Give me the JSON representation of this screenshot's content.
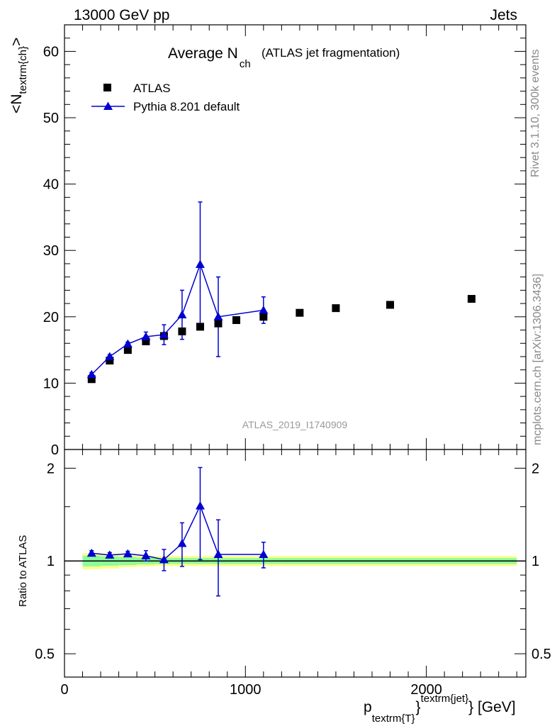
{
  "header": {
    "left": "13000 GeV pp",
    "right": "Jets"
  },
  "side_text": {
    "rivet": "Rivet 3.1.10,  300k events",
    "mcplots": "mcplots.cern.ch [arXiv:1306.3436]"
  },
  "title": {
    "main": "Average N",
    "main_sub": "ch",
    "note": "(ATLAS jet fragmentation)"
  },
  "watermark": "ATLAS_2019_I1740909",
  "axes": {
    "ylabel_main": "<N",
    "ylabel_main_sub": "textrm{ch}",
    "ylabel_main_end": ">",
    "ylabel_ratio": "Ratio to ATLAS",
    "xlabel_p": "p",
    "xlabel_sub": "textrm{T}",
    "xlabel_sup": "textrm{jet}",
    "xlabel_unit": "[GeV]"
  },
  "legend": {
    "position": "top-left",
    "items": [
      "ATLAS",
      "Pythia 8.201 default"
    ]
  },
  "colors": {
    "data": "#000000",
    "mc": "#0000d0",
    "band_inner": "#8dfd9b",
    "band_outer": "#fdfd8d"
  },
  "chart_data": [
    {
      "type": "scatter",
      "panel": "main",
      "xlim": [
        0,
        2550
      ],
      "ylim": [
        0,
        64
      ],
      "x_ticks": [
        0,
        1000,
        2000
      ],
      "y_ticks": [
        0,
        10,
        20,
        30,
        40,
        50,
        60
      ],
      "y_tick_labels": [
        "0",
        "10",
        "20",
        "30",
        "40",
        "50",
        "60"
      ],
      "series": [
        {
          "name": "ATLAS",
          "marker": "square",
          "x": [
            150,
            250,
            350,
            450,
            550,
            650,
            750,
            850,
            950,
            1100,
            1300,
            1500,
            1800,
            2250
          ],
          "y": [
            10.6,
            13.4,
            15.0,
            16.3,
            17.1,
            17.8,
            18.5,
            19.0,
            19.5,
            20.0,
            20.6,
            21.3,
            21.8,
            22.7
          ]
        },
        {
          "name": "Pythia 8.201 default",
          "marker": "triangle",
          "line": true,
          "x": [
            150,
            250,
            350,
            450,
            550,
            650,
            750,
            850,
            1100
          ],
          "y": [
            11.3,
            14.0,
            15.9,
            17.0,
            17.3,
            20.3,
            27.9,
            20.0,
            21.0
          ],
          "err": [
            0.3,
            0.3,
            0.3,
            0.7,
            1.5,
            3.7,
            9.4,
            6.0,
            2.0
          ]
        }
      ]
    },
    {
      "type": "scatter",
      "panel": "ratio",
      "xlim": [
        0,
        2550
      ],
      "ylim": [
        0.42,
        2.3
      ],
      "log_y": true,
      "x_ticks": [
        0,
        1000,
        2000
      ],
      "x_tick_labels": [
        "0",
        "1000",
        "2000"
      ],
      "y_ticks": [
        0.5,
        1,
        2
      ],
      "y_tick_labels": [
        "0.5",
        "1",
        "2"
      ],
      "reference_line": 1,
      "band": {
        "x_edges": [
          100,
          200,
          300,
          400,
          500,
          600,
          700,
          800,
          900,
          1000,
          1200,
          1400,
          1600,
          2000,
          2500
        ],
        "inner": [
          0.04,
          0.035,
          0.03,
          0.025,
          0.022,
          0.022,
          0.022,
          0.022,
          0.022,
          0.022,
          0.022,
          0.022,
          0.022,
          0.022
        ],
        "outer": [
          0.06,
          0.055,
          0.045,
          0.04,
          0.038,
          0.038,
          0.038,
          0.038,
          0.038,
          0.038,
          0.038,
          0.038,
          0.038,
          0.038
        ]
      },
      "series": [
        {
          "name": "Pythia 8.201 default",
          "x": [
            150,
            250,
            350,
            450,
            550,
            650,
            750,
            850,
            1100
          ],
          "y": [
            1.06,
            1.045,
            1.055,
            1.04,
            1.01,
            1.14,
            1.51,
            1.05,
            1.05
          ],
          "err_lo": [
            0.02,
            0.02,
            0.02,
            0.04,
            0.08,
            0.18,
            0.5,
            0.28,
            0.1
          ],
          "err_hi": [
            0.02,
            0.02,
            0.02,
            0.04,
            0.08,
            0.19,
            0.5,
            0.31,
            0.1
          ]
        }
      ]
    }
  ]
}
